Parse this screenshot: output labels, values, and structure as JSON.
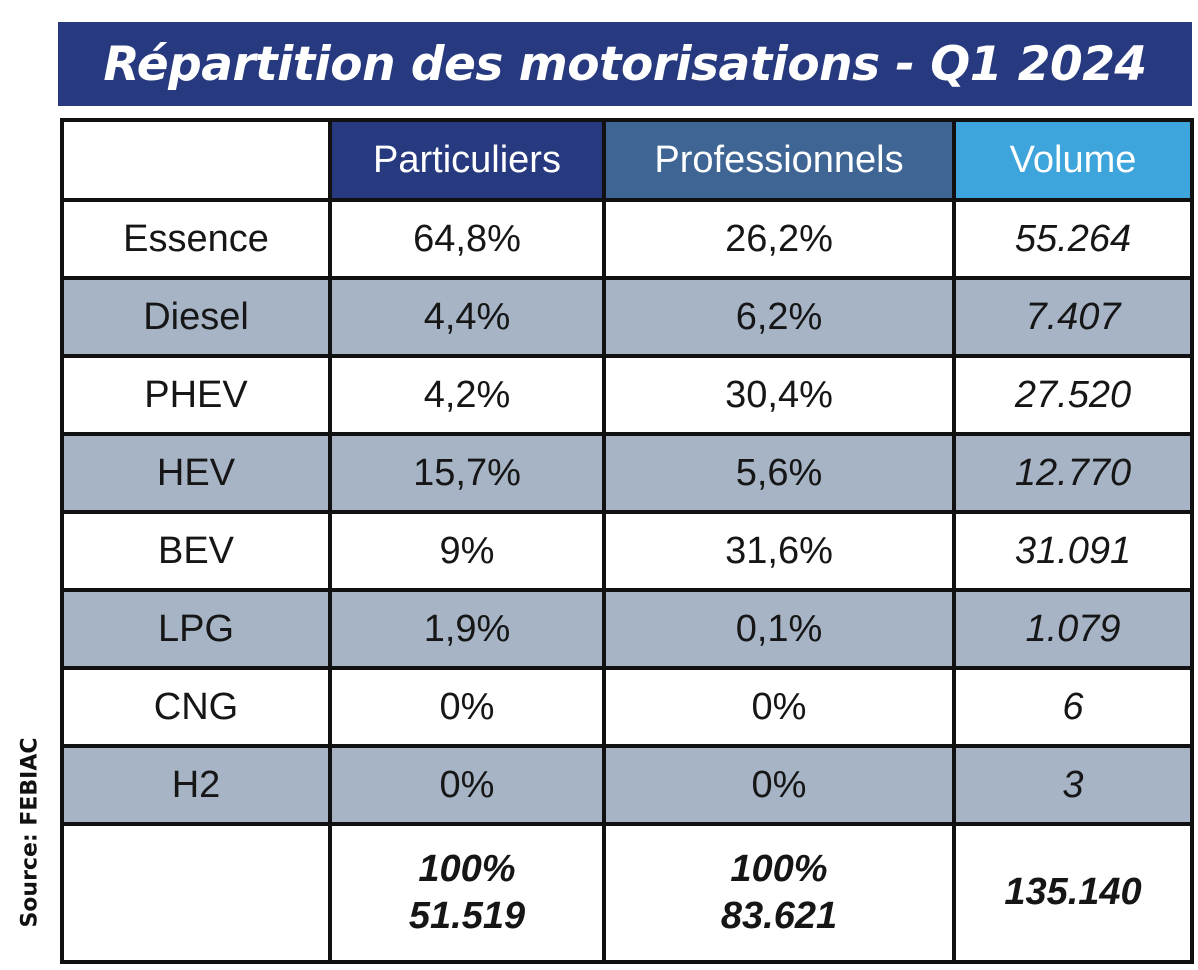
{
  "title": "Répartition des motorisations - Q1 2024",
  "source": "Source: FEBIAC",
  "colors": {
    "title_bg": "#283a7f",
    "particuliers_header": "#283a7f",
    "professionnels_header": "#3e6594",
    "volume_header": "#3ea4dc",
    "shaded_row": "#a6b4c5"
  },
  "table": {
    "headers": [
      "",
      "Particuliers",
      "Professionnels",
      "Volume"
    ],
    "rows": [
      {
        "label": "Essence",
        "particuliers": "64,8%",
        "professionnels": "26,2%",
        "volume": "55.264"
      },
      {
        "label": "Diesel",
        "particuliers": "4,4%",
        "professionnels": "6,2%",
        "volume": "7.407"
      },
      {
        "label": "PHEV",
        "particuliers": "4,2%",
        "professionnels": "30,4%",
        "volume": "27.520"
      },
      {
        "label": "HEV",
        "particuliers": "15,7%",
        "professionnels": "5,6%",
        "volume": "12.770"
      },
      {
        "label": "BEV",
        "particuliers": "9%",
        "professionnels": "31,6%",
        "volume": "31.091"
      },
      {
        "label": "LPG",
        "particuliers": "1,9%",
        "professionnels": "0,1%",
        "volume": "1.079"
      },
      {
        "label": "CNG",
        "particuliers": "0%",
        "professionnels": "0%",
        "volume": "6"
      },
      {
        "label": "H2",
        "particuliers": "0%",
        "professionnels": "0%",
        "volume": "3"
      }
    ],
    "total": {
      "particuliers_pct": "100%",
      "particuliers_volume": "51.519",
      "professionnels_pct": "100%",
      "professionnels_volume": "83.621",
      "volume": "135.140"
    }
  }
}
